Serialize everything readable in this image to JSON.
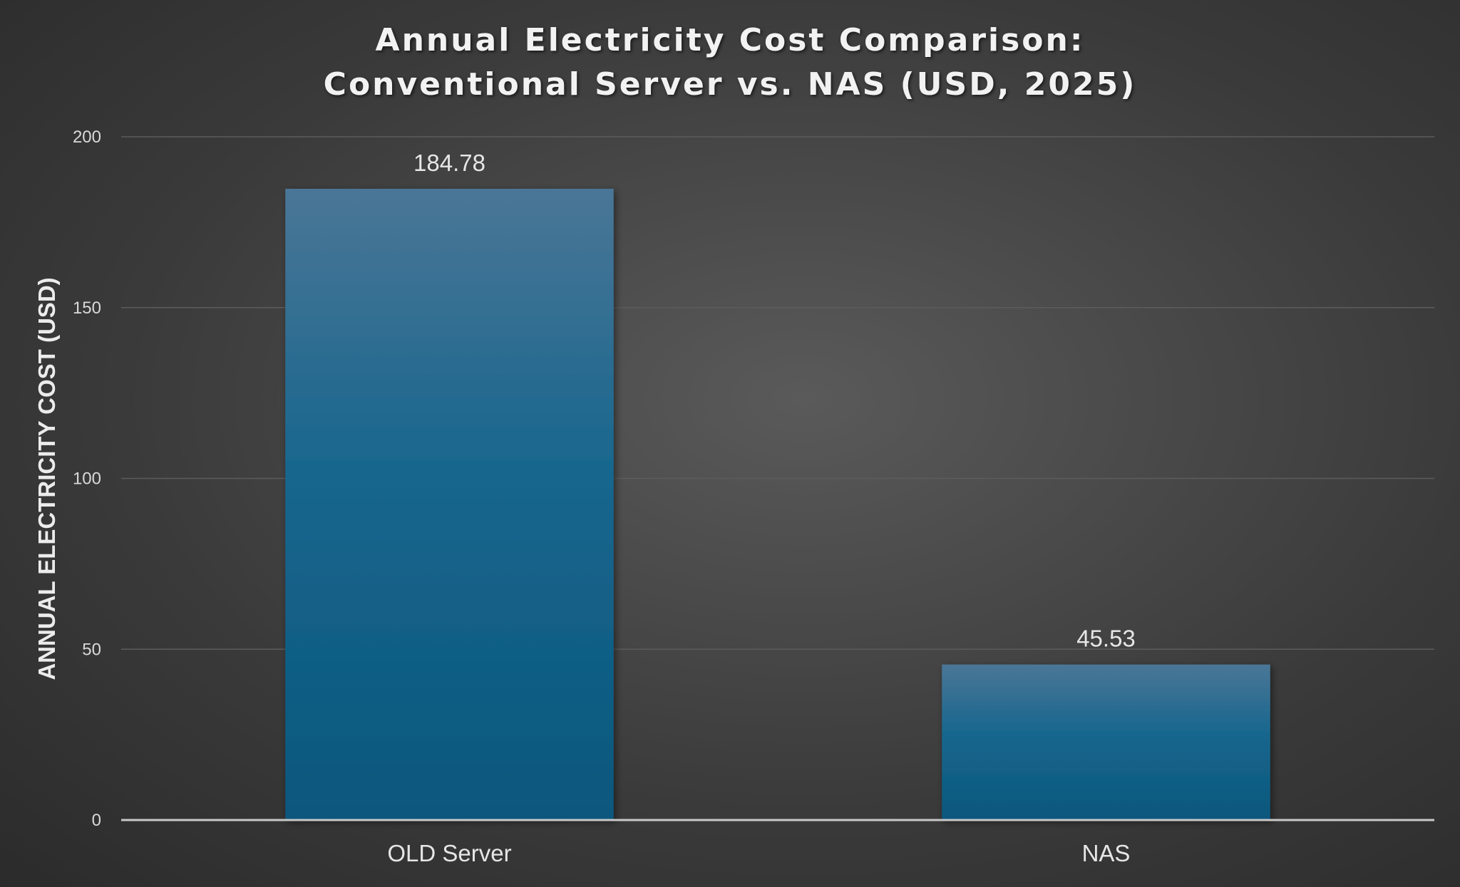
{
  "chart_data": {
    "type": "bar",
    "title_lines": [
      "Annual Electricity Cost Comparison:",
      "Conventional Server vs. NAS (USD, 2025)"
    ],
    "xlabel": "",
    "ylabel": "ANNUAL ELECTRICITY COST (USD)",
    "categories": [
      "OLD Server",
      "NAS"
    ],
    "values": [
      184.78,
      45.53
    ],
    "value_labels": [
      "184.78",
      "45.53"
    ],
    "ylim": [
      0,
      200
    ],
    "yticks": [
      0,
      50,
      100,
      150,
      200
    ],
    "grid": true,
    "legend": "none",
    "colors": {
      "bar_top": "#4a7696",
      "bar_mid": "#17668e",
      "bar_bottom": "#0b577d",
      "gridline": "#5c5c5c",
      "axis_line": "#c8c8c8",
      "text": "#e6e6e6"
    }
  }
}
